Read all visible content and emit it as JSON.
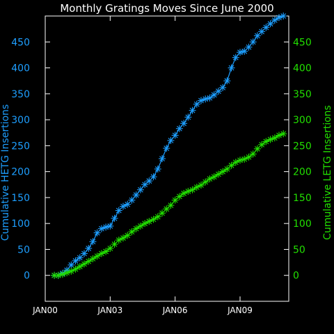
{
  "chart_data": {
    "type": "line",
    "title": "Monthly Gratings Moves Since June 2000",
    "xlabel": "",
    "ylabel_left": "Cumulative HETG Insertions",
    "ylabel_right": "Cumulative LETG Insertions",
    "x_ticks": [
      "JAN00",
      "JAN03",
      "JAN06",
      "JAN09"
    ],
    "x_tick_years": [
      2000,
      2003,
      2006,
      2009
    ],
    "xlim": [
      2000,
      2011.25
    ],
    "y_ticks_left": [
      "0",
      "50",
      "100",
      "150",
      "200",
      "250",
      "300",
      "350",
      "400",
      "450"
    ],
    "y_ticks_right": [
      "0",
      "50",
      "100",
      "150",
      "200",
      "250",
      "300",
      "350",
      "400",
      "450"
    ],
    "ylim": [
      -50,
      500
    ],
    "grid": false,
    "series": [
      {
        "name": "HETG",
        "color": "#1e9fff",
        "axis": "left",
        "marker": "asterisk",
        "x": [
          2000.42,
          2000.6,
          2000.8,
          2001.0,
          2001.2,
          2001.4,
          2001.6,
          2001.8,
          2002.0,
          2002.2,
          2002.4,
          2002.6,
          2002.8,
          2003.0,
          2003.2,
          2003.4,
          2003.6,
          2003.8,
          2004.0,
          2004.2,
          2004.4,
          2004.6,
          2004.8,
          2005.0,
          2005.2,
          2005.4,
          2005.6,
          2005.8,
          2006.0,
          2006.2,
          2006.4,
          2006.6,
          2006.8,
          2007.0,
          2007.2,
          2007.4,
          2007.6,
          2007.8,
          2008.0,
          2008.2,
          2008.4,
          2008.6,
          2008.8,
          2009.0,
          2009.2,
          2009.4,
          2009.6,
          2009.8,
          2010.0,
          2010.2,
          2010.4,
          2010.6,
          2010.8,
          2011.0
        ],
        "y": [
          0,
          0,
          4,
          10,
          20,
          28,
          34,
          42,
          52,
          65,
          82,
          90,
          93,
          95,
          110,
          125,
          133,
          137,
          145,
          155,
          165,
          175,
          182,
          190,
          205,
          225,
          245,
          260,
          270,
          283,
          293,
          305,
          318,
          330,
          337,
          340,
          342,
          348,
          355,
          362,
          375,
          400,
          420,
          430,
          432,
          440,
          450,
          462,
          470,
          478,
          485,
          492,
          497,
          500
        ]
      },
      {
        "name": "LETG",
        "color": "#22e000",
        "axis": "right",
        "marker": "asterisk",
        "x": [
          2000.42,
          2000.6,
          2000.8,
          2001.0,
          2001.2,
          2001.4,
          2001.6,
          2001.8,
          2002.0,
          2002.2,
          2002.4,
          2002.6,
          2002.8,
          2003.0,
          2003.2,
          2003.4,
          2003.6,
          2003.8,
          2004.0,
          2004.2,
          2004.4,
          2004.6,
          2004.8,
          2005.0,
          2005.2,
          2005.4,
          2005.6,
          2005.8,
          2006.0,
          2006.2,
          2006.4,
          2006.6,
          2006.8,
          2007.0,
          2007.2,
          2007.4,
          2007.6,
          2007.8,
          2008.0,
          2008.2,
          2008.4,
          2008.6,
          2008.8,
          2009.0,
          2009.2,
          2009.4,
          2009.6,
          2009.8,
          2010.0,
          2010.2,
          2010.4,
          2010.6,
          2010.8,
          2011.0
        ],
        "y": [
          0,
          0,
          2,
          5,
          8,
          12,
          17,
          22,
          27,
          32,
          37,
          42,
          46,
          52,
          60,
          68,
          72,
          77,
          84,
          90,
          95,
          100,
          104,
          108,
          113,
          120,
          128,
          135,
          145,
          152,
          158,
          162,
          165,
          170,
          174,
          180,
          186,
          190,
          195,
          200,
          205,
          212,
          218,
          222,
          224,
          228,
          234,
          244,
          252,
          258,
          262,
          265,
          270,
          273
        ]
      }
    ]
  }
}
